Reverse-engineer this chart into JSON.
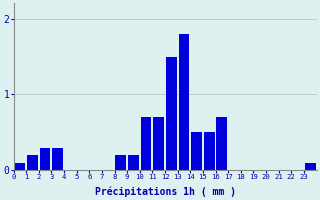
{
  "values": [
    0.1,
    0.2,
    0.3,
    0.3,
    0,
    0,
    0,
    0,
    0.2,
    0.2,
    0.7,
    0.7,
    1.5,
    1.8,
    0.5,
    0.5,
    0.7,
    0,
    0,
    0,
    0,
    0,
    0,
    0.1
  ],
  "xlabel": "Précipitations 1h ( mm )",
  "ylim": [
    0,
    2.2
  ],
  "yticks": [
    0,
    1,
    2
  ],
  "bar_color": "#0000dd",
  "background_color": "#dff0f0",
  "grid_color": "#b0c8c8",
  "tick_color": "#0000aa",
  "label_color": "#0000aa",
  "axis_color": "#888888"
}
